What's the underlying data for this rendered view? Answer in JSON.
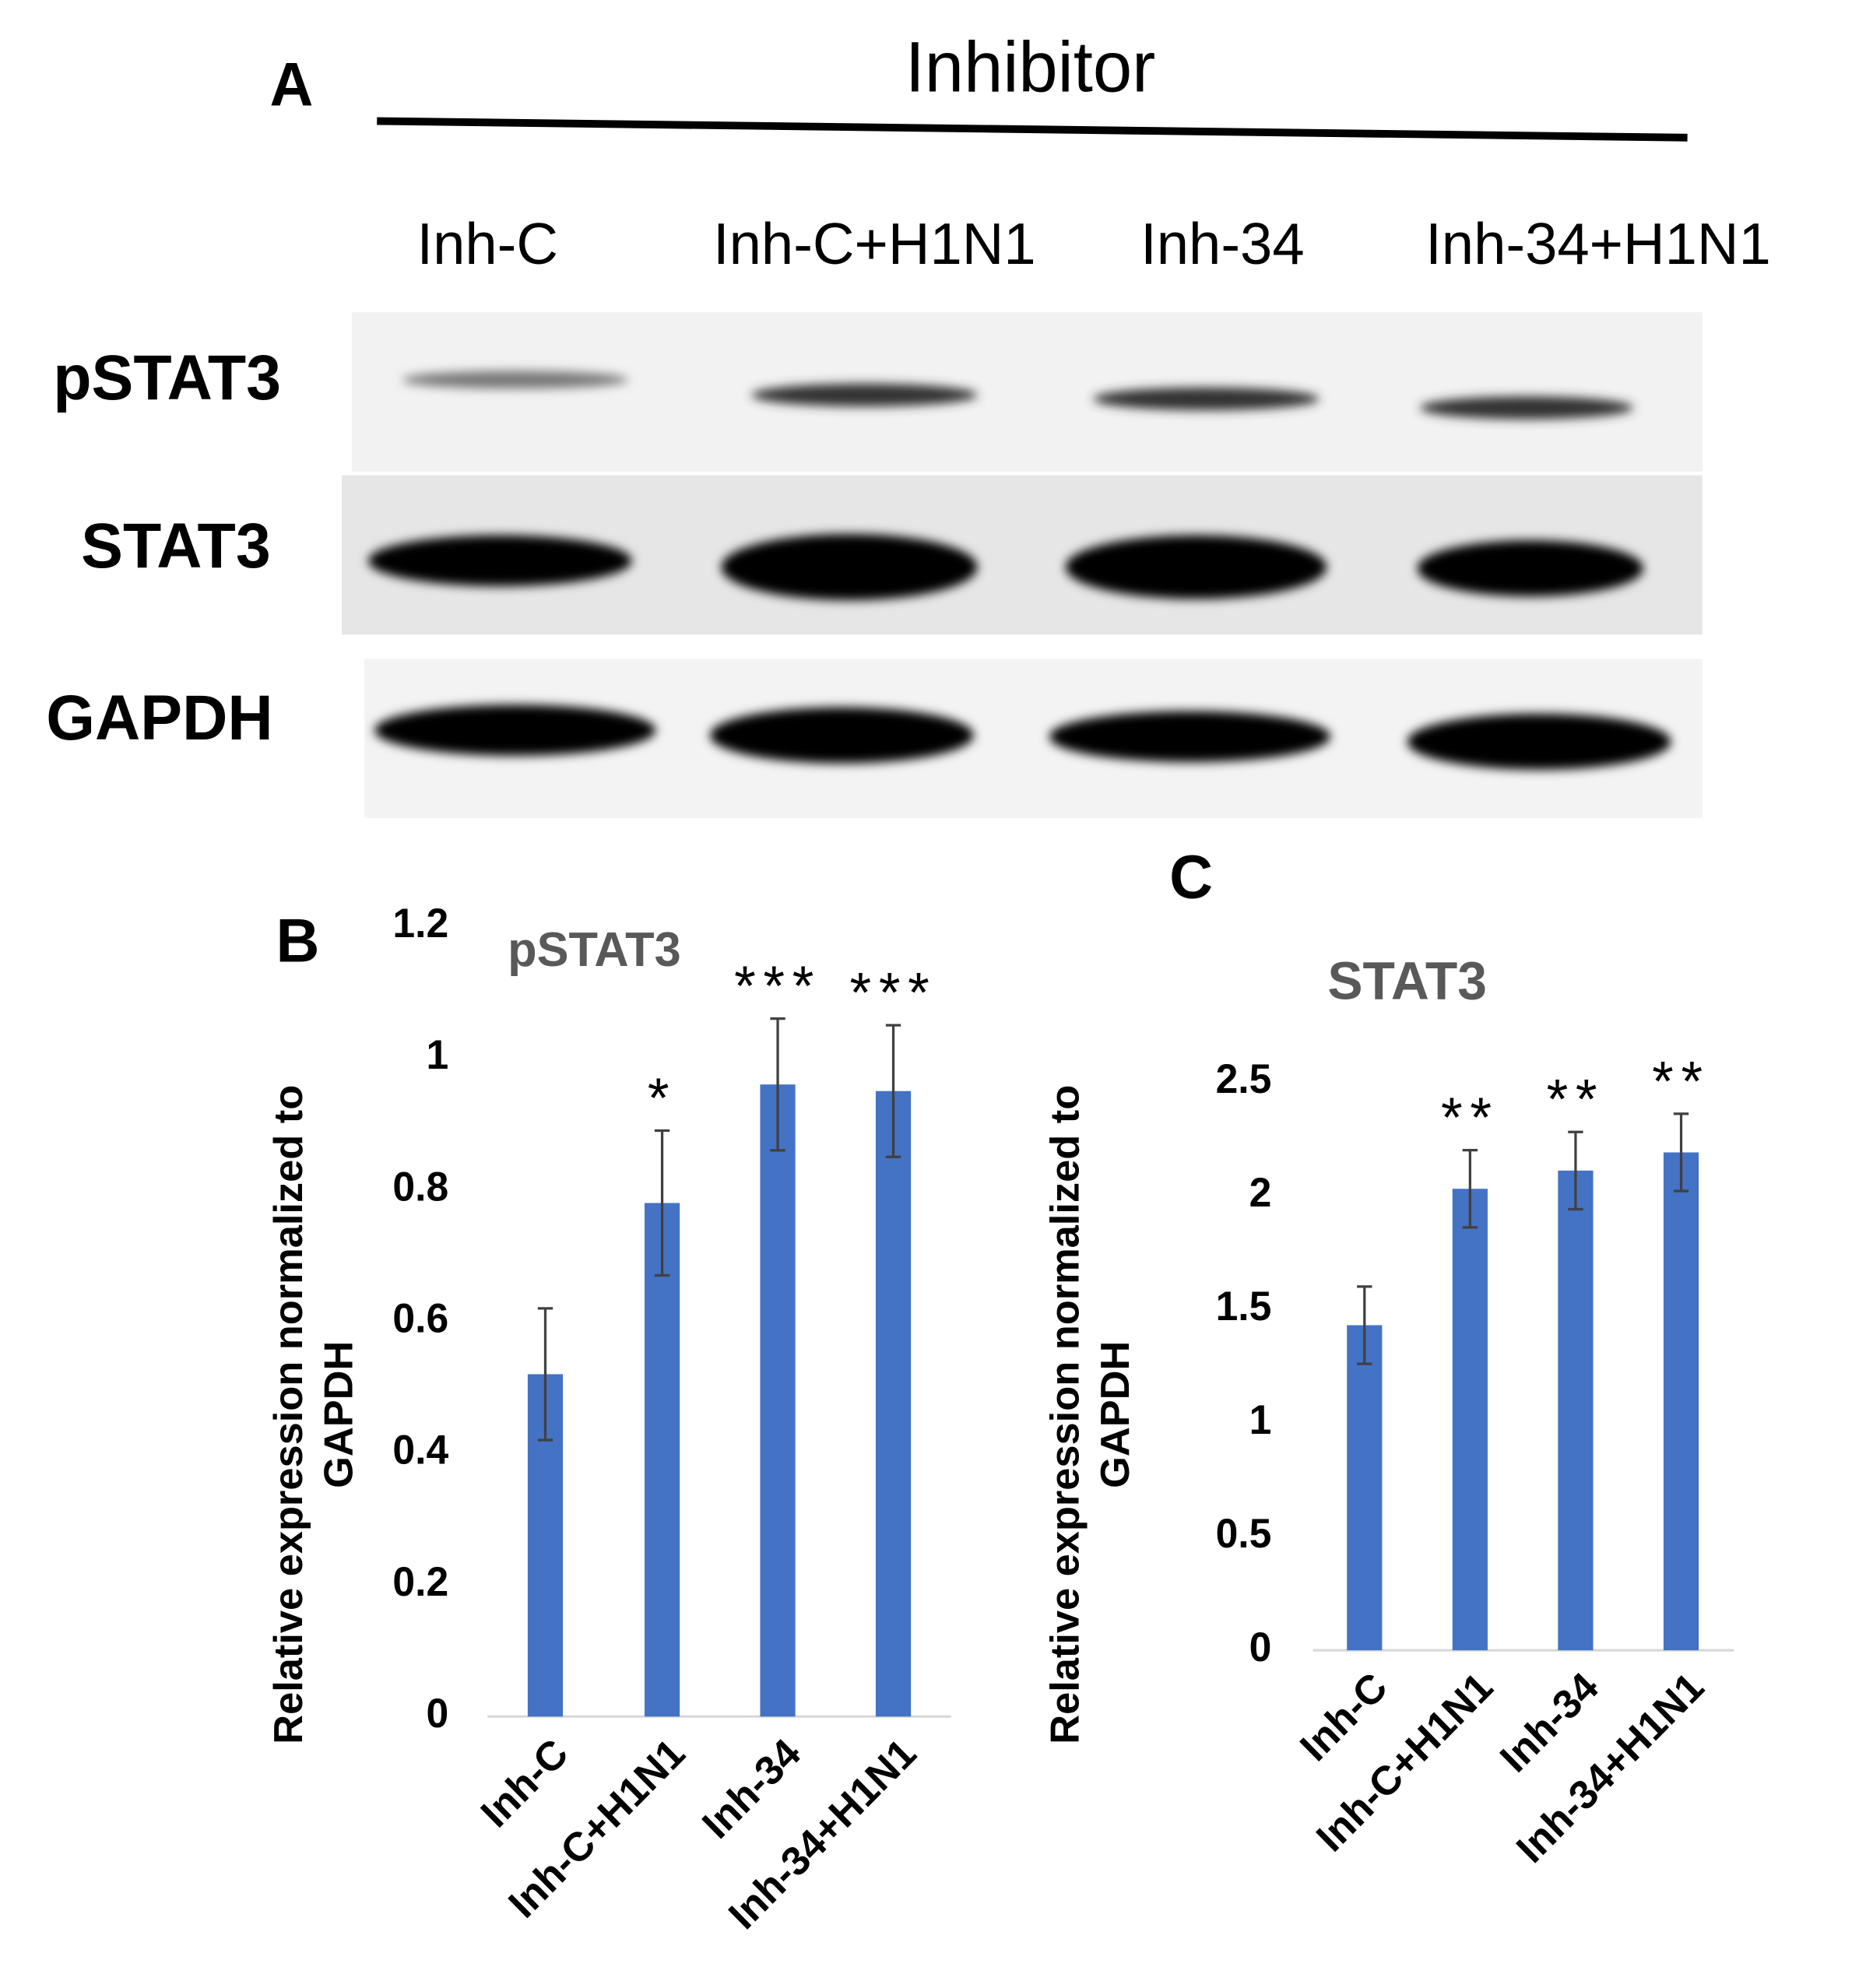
{
  "blot": {
    "panel_label": "A",
    "treatment": "Inhibitor",
    "lanes": [
      "Inh-C",
      "Inh-C+H1N1",
      "Inh-34",
      "Inh-34+H1N1"
    ],
    "rows": [
      "pSTAT3",
      "STAT3",
      "GAPDH"
    ]
  },
  "chart_data": [
    {
      "type": "bar",
      "panel_label": "B",
      "title": "pSTAT3",
      "y_label": [
        "Relative expression normalized to",
        "GAPDH"
      ],
      "categories": [
        "Inh-C",
        "Inh-C+H1N1",
        "Inh-34",
        "Inh-34+H1N1"
      ],
      "values": [
        0.52,
        0.78,
        0.96,
        0.95
      ],
      "errors": [
        0.1,
        0.11,
        0.1,
        0.1
      ],
      "annotations": [
        null,
        "*",
        "***",
        "***"
      ],
      "color": "#4472c4",
      "ylim": [
        0,
        1.2
      ],
      "yticks": [
        0,
        0.2,
        0.4,
        0.6,
        0.8,
        1,
        1.2
      ],
      "grid": false
    },
    {
      "type": "bar",
      "panel_label": "C",
      "title": "STAT3",
      "y_label": [
        "Relative expression normalized to",
        "GAPDH"
      ],
      "categories": [
        "Inh-C",
        "Inh-C+H1N1",
        "Inh-34",
        "Inh-34+H1N1"
      ],
      "values": [
        1.43,
        2.03,
        2.11,
        2.19
      ],
      "errors": [
        0.17,
        0.17,
        0.17,
        0.17
      ],
      "annotations": [
        null,
        "**",
        "**",
        "**"
      ],
      "color": "#4472c4",
      "ylim": [
        0,
        2.5
      ],
      "yticks": [
        0,
        0.5,
        1,
        1.5,
        2,
        2.5
      ],
      "grid": false
    }
  ]
}
